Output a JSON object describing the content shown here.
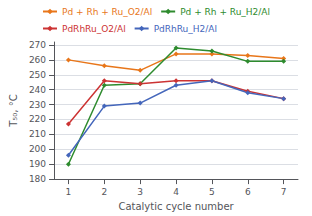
{
  "chart_data": {
    "type": "line",
    "xlabel": "Catalytic cycle number",
    "ylabel": "T₅₀, °C",
    "x": [
      1,
      2,
      3,
      4,
      5,
      6,
      7
    ],
    "series": [
      {
        "name": "Pd + Rh + Ru_O2/Al",
        "color": "#E8761A",
        "values": [
          260,
          256,
          253,
          264,
          264,
          263,
          261
        ]
      },
      {
        "name": "Pd + Rh + Ru_H2/Al",
        "color": "#2E8B2E",
        "values": [
          190,
          243,
          244,
          268,
          266,
          259,
          259
        ]
      },
      {
        "name": "PdRhRu_O2/Al",
        "color": "#CC3333",
        "values": [
          217,
          246,
          244,
          246,
          246,
          239,
          234
        ]
      },
      {
        "name": "PdRhRu_H2/Al",
        "color": "#4466BB",
        "values": [
          196,
          229,
          231,
          243,
          246,
          238,
          234
        ]
      }
    ],
    "xlim": [
      0.6,
      7.4
    ],
    "ylim": [
      180,
      272
    ],
    "xticks": [
      1,
      2,
      3,
      4,
      5,
      6,
      7
    ],
    "yticks": [
      180,
      190,
      200,
      210,
      220,
      230,
      240,
      250,
      260,
      270
    ],
    "grid": true,
    "legend": "top",
    "marker": "diamond"
  }
}
